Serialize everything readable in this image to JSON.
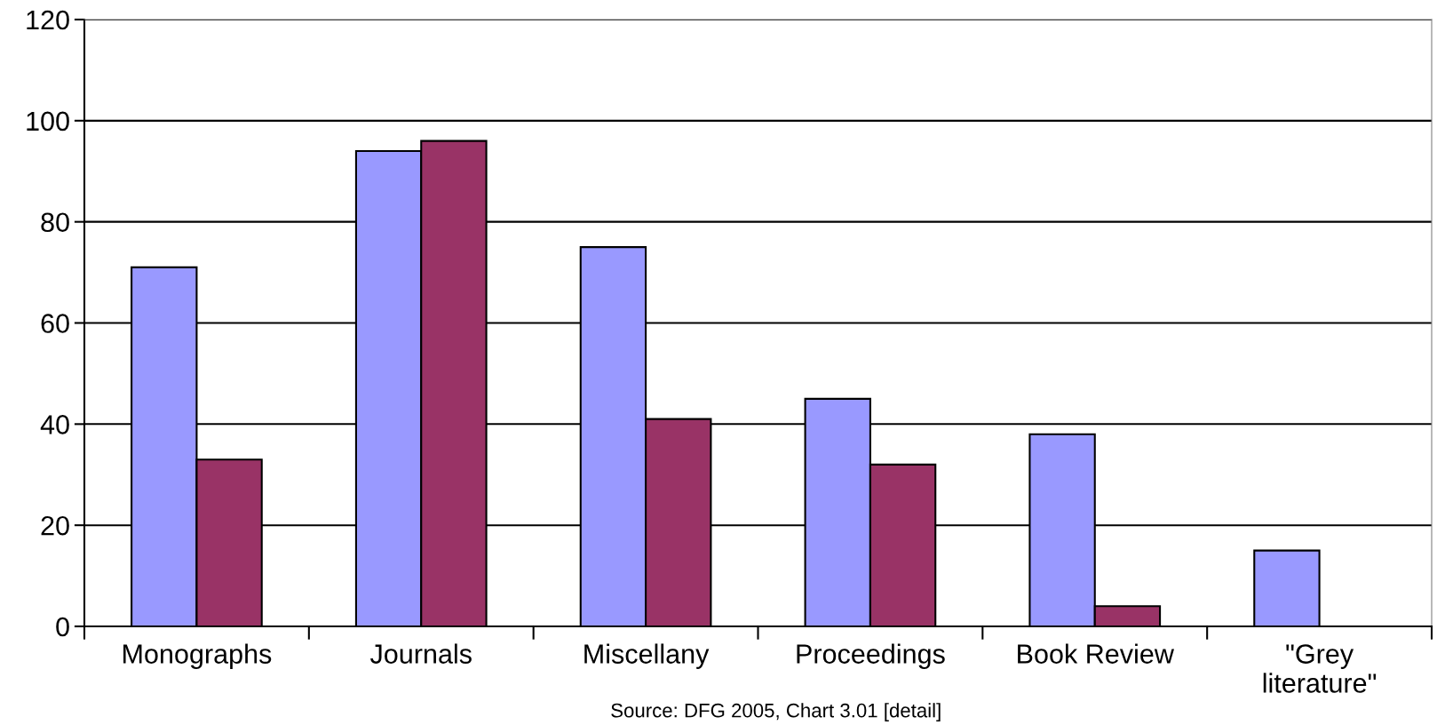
{
  "chart_data": {
    "type": "bar",
    "categories": [
      "Monographs",
      "Journals",
      "Miscellany",
      "Proceedings",
      "Book Review",
      "\"Grey\nliterature\""
    ],
    "series": [
      {
        "color": "#9999ff",
        "values": [
          71,
          94,
          75,
          45,
          38,
          15
        ]
      },
      {
        "color": "#993366",
        "values": [
          33,
          96,
          41,
          32,
          4,
          null
        ]
      }
    ],
    "ylim": [
      0,
      120
    ],
    "yticks": [
      0,
      20,
      40,
      60,
      80,
      100,
      120
    ],
    "grid": "y",
    "legend": false,
    "annotations": [
      "Source: DFG 2005, Chart 3.01 [detail]"
    ]
  }
}
